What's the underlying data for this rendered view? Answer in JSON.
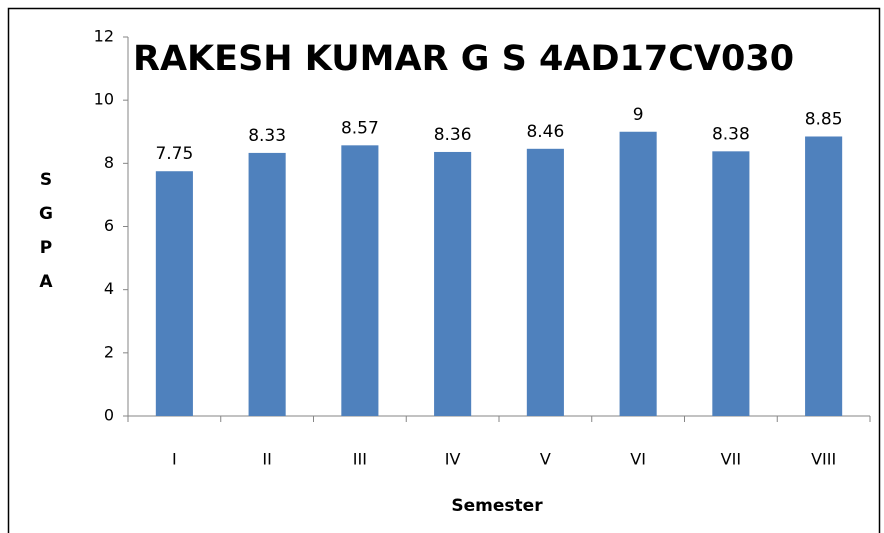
{
  "chart_data": {
    "type": "bar",
    "title": "RAKESH KUMAR G S 4AD17CV030",
    "x_label": "Semester",
    "y_label": "SGPA",
    "categories": [
      "I",
      "II",
      "III",
      "IV",
      "V",
      "VI",
      "VII",
      "VIII"
    ],
    "values": [
      7.75,
      8.33,
      8.57,
      8.36,
      8.46,
      9,
      8.38,
      8.85
    ],
    "color": "#4f81bd",
    "ylim": [
      0,
      12
    ],
    "yticks": [
      0,
      2,
      4,
      6,
      8,
      10,
      12
    ],
    "grid": false
  }
}
